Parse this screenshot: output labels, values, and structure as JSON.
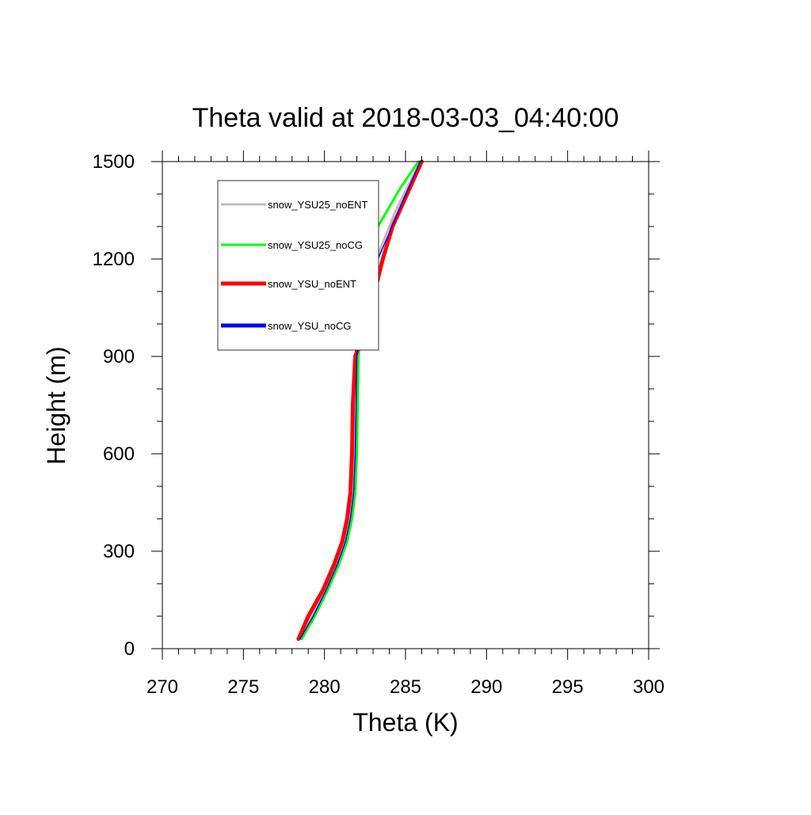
{
  "chart_data": {
    "type": "line",
    "title": "Theta valid at 2018-03-03_04:40:00",
    "xlabel": "Theta (K)",
    "ylabel": "Height (m)",
    "xlim": [
      270,
      300
    ],
    "ylim": [
      0,
      1500
    ],
    "x_ticks": [
      270,
      275,
      280,
      285,
      290,
      295,
      300
    ],
    "y_ticks": [
      0,
      300,
      600,
      900,
      1200,
      1500
    ],
    "grid": false,
    "legend_position": "top-left inside plot, boxed",
    "series": [
      {
        "name": "snow_YSU25_noENT",
        "color": "#bebebe",
        "points": [
          [
            278.5,
            30
          ],
          [
            279.2,
            100
          ],
          [
            280.0,
            180
          ],
          [
            280.7,
            260
          ],
          [
            281.2,
            330
          ],
          [
            281.5,
            400
          ],
          [
            281.7,
            480
          ],
          [
            281.8,
            600
          ],
          [
            281.85,
            750
          ],
          [
            281.9,
            900
          ],
          [
            282.2,
            1000
          ],
          [
            282.5,
            1100
          ],
          [
            283.2,
            1200
          ],
          [
            284.4,
            1350
          ],
          [
            285.9,
            1500
          ]
        ]
      },
      {
        "name": "snow_YSU25_noCG",
        "color": "#00ff00",
        "points": [
          [
            278.6,
            30
          ],
          [
            279.4,
            100
          ],
          [
            280.2,
            180
          ],
          [
            280.9,
            260
          ],
          [
            281.4,
            330
          ],
          [
            281.7,
            400
          ],
          [
            281.9,
            480
          ],
          [
            282.0,
            600
          ],
          [
            282.05,
            750
          ],
          [
            282.1,
            900
          ],
          [
            282.3,
            1000
          ],
          [
            282.5,
            1100
          ],
          [
            282.7,
            1200
          ],
          [
            283.3,
            1300
          ],
          [
            284.7,
            1420
          ],
          [
            285.8,
            1500
          ]
        ]
      },
      {
        "name": "snow_YSU_noENT",
        "color": "#ff0000",
        "points": [
          [
            278.4,
            30
          ],
          [
            279.0,
            100
          ],
          [
            279.9,
            180
          ],
          [
            280.6,
            260
          ],
          [
            281.1,
            330
          ],
          [
            281.4,
            400
          ],
          [
            281.6,
            480
          ],
          [
            281.7,
            600
          ],
          [
            281.75,
            750
          ],
          [
            281.9,
            900
          ],
          [
            282.6,
            1000
          ],
          [
            283.1,
            1100
          ],
          [
            283.6,
            1200
          ],
          [
            284.2,
            1300
          ],
          [
            286.0,
            1500
          ]
        ]
      },
      {
        "name": "snow_YSU_noCG",
        "color": "#0000ff",
        "points": [
          [
            278.5,
            30
          ],
          [
            279.3,
            100
          ],
          [
            280.1,
            180
          ],
          [
            280.8,
            260
          ],
          [
            281.3,
            330
          ],
          [
            281.6,
            400
          ],
          [
            281.8,
            480
          ],
          [
            281.9,
            600
          ],
          [
            281.95,
            750
          ],
          [
            282.0,
            900
          ],
          [
            282.2,
            1000
          ],
          [
            282.3,
            1100
          ],
          [
            282.7,
            1150
          ],
          [
            283.3,
            1200
          ],
          [
            285.9,
            1500
          ]
        ]
      }
    ]
  }
}
